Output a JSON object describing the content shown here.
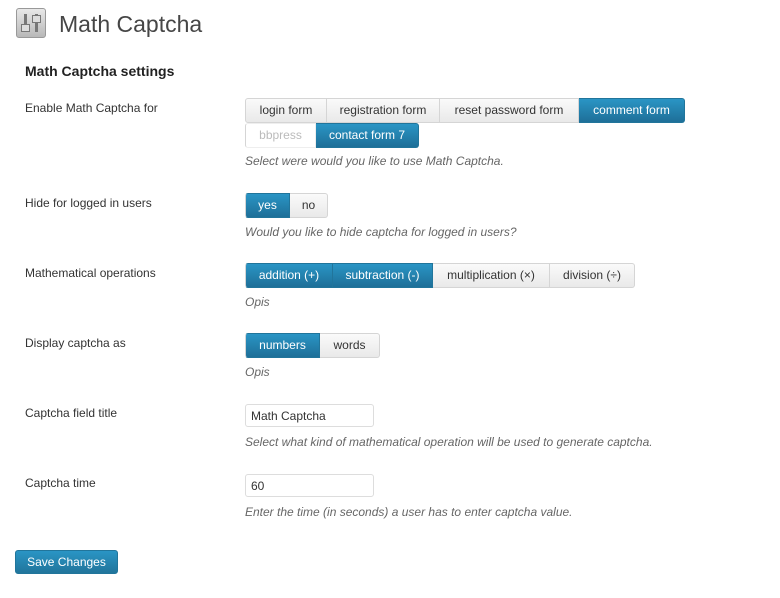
{
  "page": {
    "title": "Math Captcha",
    "icon": "sliders-icon",
    "section_title": "Math Captcha settings"
  },
  "enable": {
    "label": "Enable Math Captcha for",
    "options": [
      {
        "label": "login form",
        "active": false
      },
      {
        "label": "registration form",
        "active": false
      },
      {
        "label": "reset password form",
        "active": false
      },
      {
        "label": "comment form",
        "active": true
      },
      {
        "label": "bbpress",
        "active": false,
        "disabled": true
      },
      {
        "label": "contact form 7",
        "active": true
      }
    ],
    "description": "Select were would you like to use Math Captcha."
  },
  "hide": {
    "label": "Hide for logged in users",
    "options": [
      {
        "label": "yes",
        "active": true
      },
      {
        "label": "no",
        "active": false
      }
    ],
    "description": "Would you like to hide captcha for logged in users?"
  },
  "operations": {
    "label": "Mathematical operations",
    "options": [
      {
        "label": "addition (+)",
        "active": true
      },
      {
        "label": "subtraction (-)",
        "active": true
      },
      {
        "label": "multiplication (×)",
        "active": false
      },
      {
        "label": "division (÷)",
        "active": false
      }
    ],
    "description": "Opis"
  },
  "display": {
    "label": "Display captcha as",
    "options": [
      {
        "label": "numbers",
        "active": true
      },
      {
        "label": "words",
        "active": false
      }
    ],
    "description": "Opis"
  },
  "field_title": {
    "label": "Captcha field title",
    "value": "Math Captcha",
    "description": "Select what kind of mathematical operation will be used to generate captcha."
  },
  "time": {
    "label": "Captcha time",
    "value": "60",
    "description": "Enter the time (in seconds) a user has to enter captcha value."
  },
  "save_label": "Save Changes",
  "colors": {
    "accent": "#21759b"
  }
}
